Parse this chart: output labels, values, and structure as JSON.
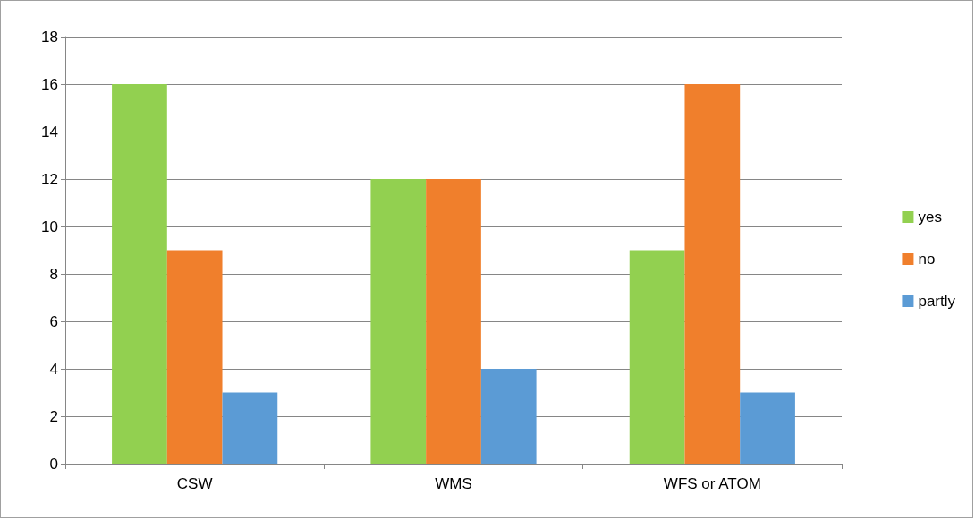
{
  "chart_data": {
    "type": "bar",
    "categories": [
      "CSW",
      "WMS",
      "WFS or ATOM"
    ],
    "series": [
      {
        "name": "yes",
        "color": "#92d050",
        "values": [
          16,
          12,
          9
        ]
      },
      {
        "name": "no",
        "color": "#f07f2c",
        "values": [
          9,
          12,
          16
        ]
      },
      {
        "name": "partly",
        "color": "#5b9bd5",
        "values": [
          3,
          4,
          3
        ]
      }
    ],
    "ylim": [
      0,
      18
    ],
    "yticks": [
      0,
      2,
      4,
      6,
      8,
      10,
      12,
      14,
      16,
      18
    ],
    "grid": "y",
    "legend": "right"
  }
}
